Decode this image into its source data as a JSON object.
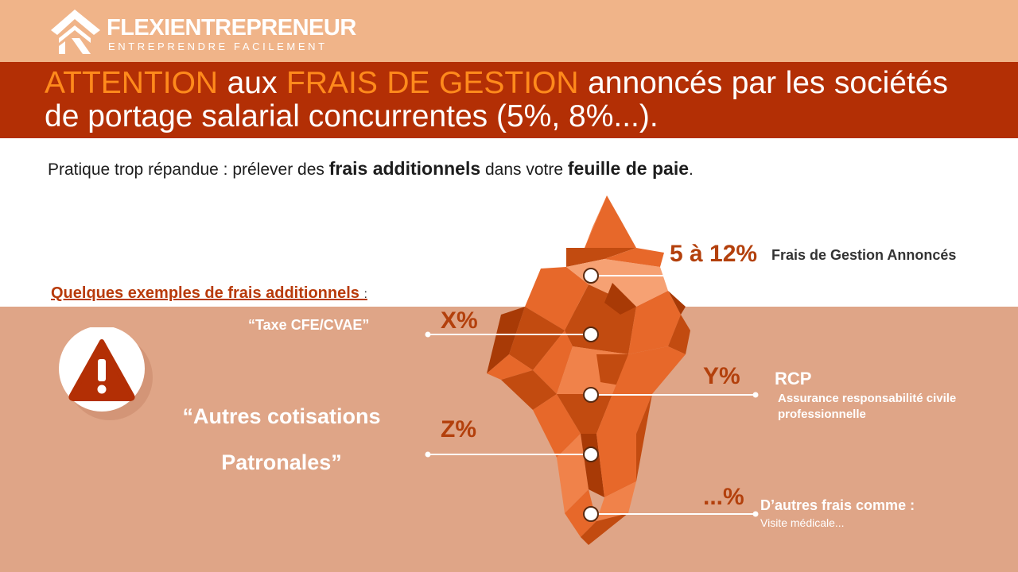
{
  "brand": {
    "name": "FLEXIENTREPRENEUR",
    "tagline": "ENTREPRENDRE FACILEMENT",
    "icon": "house-roof-logo-icon"
  },
  "title": {
    "accent_1": "ATTENTION",
    "text_1": " aux ",
    "accent_2": "FRAIS DE GESTION",
    "text_2": " annoncés par les sociétés de portage salarial concurrentes (5%, 8%...)."
  },
  "subtitle": {
    "part_1": "Pratique trop répandue : prélever des ",
    "bold_1": "frais additionnels",
    "part_2": " dans votre ",
    "bold_2": "feuille de paie",
    "part_3": "."
  },
  "examples": {
    "heading": "Quelques exemples de frais additionnels ",
    "colon": ":"
  },
  "warning": {
    "icon": "warning-triangle-icon"
  },
  "autres": {
    "line_1": "“Autres cotisations",
    "line_2": "Patronales”"
  },
  "iceberg": {
    "colors": {
      "light": "#f6a173",
      "mid": "#e7682a",
      "dark": "#c24b10",
      "shadow": "#a83a06",
      "tip": "#f0824a"
    }
  },
  "callouts": {
    "gestion": {
      "percent": "5 à 12%",
      "label": "Frais de Gestion Annoncés"
    },
    "cfe": {
      "percent": "X%",
      "label": "“Taxe CFE/CVAE”"
    },
    "rcp": {
      "percent": "Y%",
      "label": "RCP",
      "description": "Assurance responsabilité civile professionnelle"
    },
    "patronales": {
      "percent": "Z%"
    },
    "autres_frais": {
      "percent": "...%",
      "label": "D’autres frais comme :",
      "description": "Visite médicale..."
    }
  },
  "colors": {
    "top_band": "#f0b489",
    "title_band": "#b32f05",
    "bottom_zone": "#dfa587",
    "accent_orange": "#ff8a1c",
    "percent_text": "#b3400c",
    "warning_red": "#b32f05"
  }
}
